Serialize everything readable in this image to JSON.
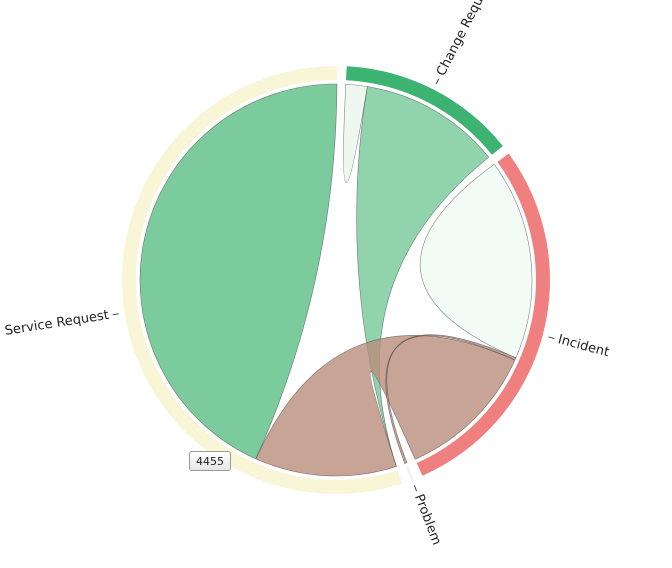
{
  "chart_data": {
    "type": "chord",
    "groups": [
      {
        "name": "Service Request",
        "color": "#f8f6d6",
        "chord_color": "#7ccb9d"
      },
      {
        "name": "Change Request",
        "color": "#3cb371",
        "chord_color": "#7ccb9d"
      },
      {
        "name": "Incident",
        "color": "#f08080",
        "chord_color": "#f5a7a7"
      },
      {
        "name": "Problem",
        "color": "#f0f0f0",
        "chord_color": "#f5a7a7"
      }
    ],
    "matrix": [
      [
        4455,
        0,
        1200,
        0
      ],
      [
        1200,
        180,
        0,
        0
      ],
      [
        1200,
        0,
        1700,
        20
      ],
      [
        0,
        0,
        20,
        0
      ]
    ],
    "tooltip": "4455"
  }
}
